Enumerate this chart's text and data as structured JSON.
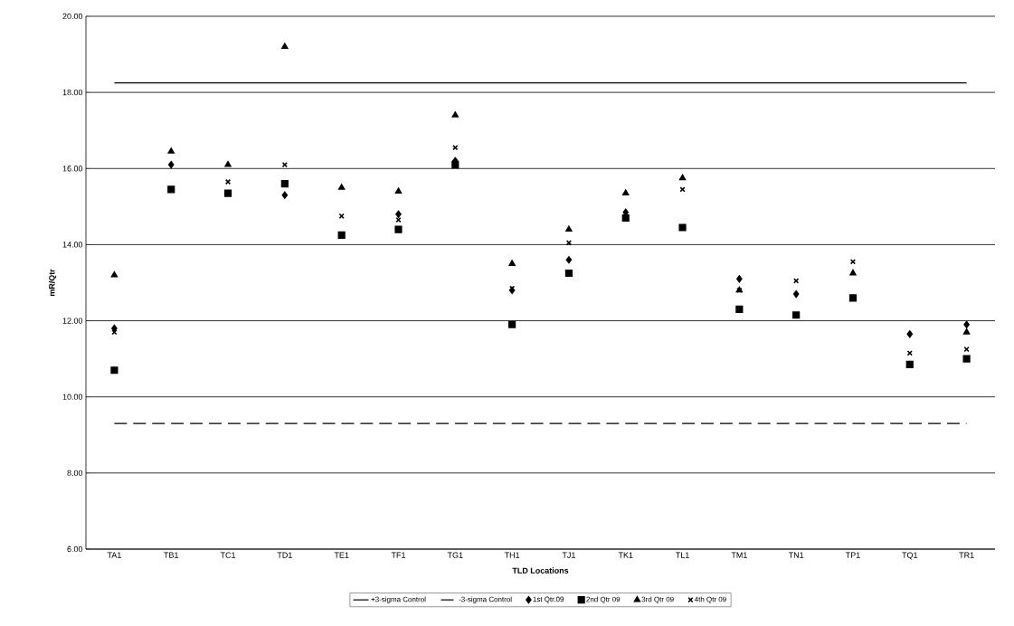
{
  "chart_data": {
    "type": "scatter",
    "xlabel": "TLD Locations",
    "ylabel": "mR/Qtr",
    "categories": [
      "TA1",
      "TB1",
      "TC1",
      "TD1",
      "TE1",
      "TF1",
      "TG1",
      "TH1",
      "TJ1",
      "TK1",
      "TL1",
      "TM1",
      "TN1",
      "TP1",
      "TQ1",
      "TR1"
    ],
    "ylim": [
      6,
      20
    ],
    "yticks": [
      {
        "value": 6,
        "label": "6.00"
      },
      {
        "value": 8,
        "label": "8.00"
      },
      {
        "value": 10,
        "label": "10.00"
      },
      {
        "value": 12,
        "label": "12.00"
      },
      {
        "value": 14,
        "label": "14.00"
      },
      {
        "value": 16,
        "label": "16.00"
      },
      {
        "value": 18,
        "label": "18.00"
      },
      {
        "value": 20,
        "label": "20.00"
      }
    ],
    "grid": "y",
    "legend": "bottom",
    "series": [
      {
        "name": "+3-sigma Control",
        "type": "line",
        "line_style": "solid",
        "color": "#000000",
        "values": [
          18.25,
          18.25,
          18.25,
          18.25,
          18.25,
          18.25,
          18.25,
          18.25,
          18.25,
          18.25,
          18.25,
          18.25,
          18.25,
          18.25,
          18.25,
          18.25
        ]
      },
      {
        "name": "-3-sigma Control",
        "type": "line",
        "line_style": "dashed",
        "color": "#000000",
        "values": [
          9.3,
          9.3,
          9.3,
          9.3,
          9.3,
          9.3,
          9.3,
          9.3,
          9.3,
          9.3,
          9.3,
          9.3,
          9.3,
          9.3,
          9.3,
          9.3
        ]
      },
      {
        "name": "1st Qtr.09",
        "marker": "diamond",
        "color": "#000000",
        "values": [
          11.8,
          16.1,
          null,
          15.3,
          null,
          14.8,
          16.2,
          12.8,
          13.6,
          14.85,
          null,
          13.1,
          12.7,
          null,
          11.65,
          11.9
        ]
      },
      {
        "name": "2nd Qtr 09",
        "marker": "square",
        "color": "#000000",
        "values": [
          10.7,
          15.45,
          15.35,
          15.6,
          14.25,
          14.4,
          16.1,
          11.9,
          13.25,
          14.7,
          14.45,
          12.3,
          12.15,
          12.6,
          10.85,
          11.0
        ]
      },
      {
        "name": "3rd Qtr 09",
        "marker": "triangle",
        "color": "#000000",
        "values": [
          13.2,
          16.45,
          16.1,
          19.2,
          15.5,
          15.4,
          17.4,
          13.5,
          14.4,
          15.35,
          15.75,
          12.8,
          null,
          13.25,
          null,
          11.7
        ]
      },
      {
        "name": "4th Qtr 09",
        "marker": "cross",
        "color": "#000000",
        "values": [
          11.7,
          null,
          15.65,
          16.1,
          14.75,
          14.65,
          16.55,
          12.85,
          14.05,
          null,
          15.45,
          12.8,
          13.05,
          13.55,
          11.15,
          11.25
        ]
      }
    ]
  }
}
